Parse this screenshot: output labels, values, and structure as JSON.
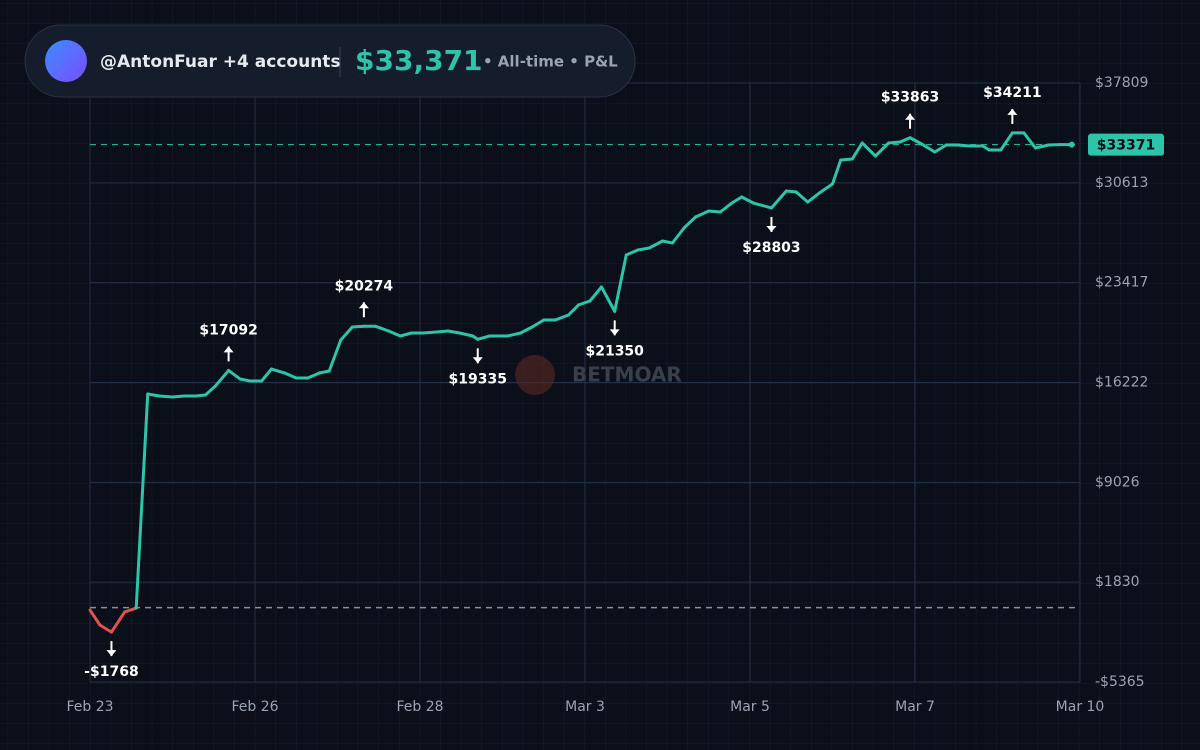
{
  "chart_data": {
    "type": "line",
    "header": {
      "account": "@AntonFuar +4 accounts",
      "total_label": "$33,371",
      "period": "• All-time • P&L"
    },
    "watermark": "BETMOAR",
    "color": "#2ec4a9",
    "negative_color": "#e05252",
    "x": [
      0,
      0.06,
      0.13,
      0.21,
      0.28,
      0.35,
      0.42,
      0.5,
      0.57,
      0.64,
      0.7,
      0.76,
      0.84,
      0.91,
      0.97,
      1.04,
      1.1,
      1.18,
      1.25,
      1.32,
      1.39,
      1.45,
      1.52,
      1.59,
      1.66,
      1.73,
      1.81,
      1.88,
      1.95,
      2.02,
      2.1,
      2.17,
      2.24,
      2.32,
      2.35,
      2.42,
      2.53,
      2.61,
      2.68,
      2.75,
      2.82,
      2.9,
      2.96,
      3.03,
      3.1,
      3.18,
      3.25,
      3.32,
      3.39,
      3.47,
      3.53,
      3.6,
      3.67,
      3.75,
      3.82,
      3.89,
      3.95,
      4.02,
      4.13,
      4.22,
      4.28,
      4.35,
      4.42,
      4.5,
      4.55,
      4.62,
      4.68,
      4.76,
      4.84,
      4.91,
      4.97,
      5.04,
      5.12,
      5.19,
      5.26,
      5.33,
      5.41,
      5.45,
      5.52,
      5.59,
      5.66,
      5.73,
      5.81,
      5.88,
      5.95
    ],
    "values": [
      -177,
      -1258,
      -1768,
      -321,
      -33,
      15392,
      15248,
      15176,
      15248,
      15248,
      15320,
      15969,
      17092,
      16473,
      16329,
      16329,
      17194,
      16906,
      16545,
      16545,
      16906,
      17050,
      19284,
      20221,
      20274,
      20274,
      19933,
      19573,
      19789,
      19789,
      19861,
      19933,
      19789,
      19573,
      19335,
      19573,
      19573,
      19789,
      20221,
      20726,
      20726,
      21086,
      21807,
      22096,
      23105,
      21350,
      25411,
      25772,
      25916,
      26420,
      26276,
      27357,
      28150,
      28583,
      28511,
      29159,
      29592,
      29159,
      28803,
      30024,
      29952,
      29231,
      29880,
      30529,
      32259,
      32331,
      33484,
      32547,
      33484,
      33556,
      33863,
      33412,
      32835,
      33340,
      33340,
      33268,
      33268,
      32980,
      32980,
      34211,
      34211,
      33124,
      33340,
      33371,
      33371
    ],
    "current_label": "$33371",
    "annotations": [
      {
        "x": 0.13,
        "label": "-$1768",
        "position": "below"
      },
      {
        "x": 0.84,
        "label": "$17092",
        "position": "above"
      },
      {
        "x": 1.66,
        "label": "$20274",
        "position": "above"
      },
      {
        "x": 2.35,
        "label": "$19335",
        "position": "below"
      },
      {
        "x": 3.18,
        "label": "$21350",
        "position": "below"
      },
      {
        "x": 4.13,
        "label": "$28803",
        "position": "below"
      },
      {
        "x": 4.97,
        "label": "$33863",
        "position": "above"
      },
      {
        "x": 5.59,
        "label": "$34211",
        "position": "above"
      }
    ],
    "xlim": [
      0,
      6
    ],
    "xticks": [
      {
        "value": 0,
        "label": "Feb 23"
      },
      {
        "value": 1,
        "label": "Feb 26"
      },
      {
        "value": 2,
        "label": "Feb 28"
      },
      {
        "value": 3,
        "label": "Mar 3"
      },
      {
        "value": 4,
        "label": "Mar 5"
      },
      {
        "value": 5,
        "label": "Mar 7"
      },
      {
        "value": 6,
        "label": "Mar 10"
      }
    ],
    "ylim": [
      -5365,
      37809
    ],
    "yticks": [
      {
        "value": -5365,
        "label": "-$5365"
      },
      {
        "value": 1830,
        "label": "$1830"
      },
      {
        "value": 9026,
        "label": "$9026"
      },
      {
        "value": 16222,
        "label": "$16222"
      },
      {
        "value": 23417,
        "label": "$23417"
      },
      {
        "value": 30613,
        "label": "$30613"
      },
      {
        "value": 37809,
        "label": "$37809"
      }
    ],
    "grid": true
  }
}
